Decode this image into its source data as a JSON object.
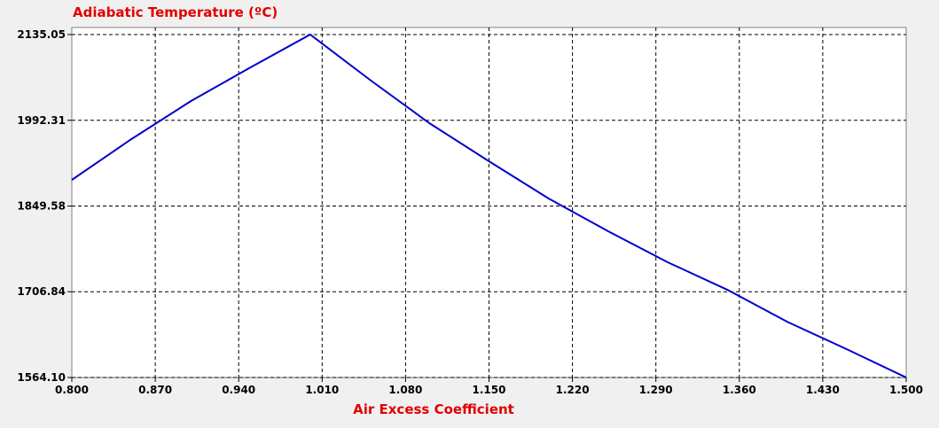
{
  "chart_data": {
    "type": "line",
    "title": "Adiabatic Temperature (ºC)",
    "xlabel": "Air Excess Coefficient",
    "ylabel": "",
    "xlim": [
      0.8,
      1.5
    ],
    "ylim": [
      1564.1,
      2135.05
    ],
    "x_ticks": [
      "0.800",
      "0.870",
      "0.940",
      "1.010",
      "1.080",
      "1.150",
      "1.220",
      "1.290",
      "1.360",
      "1.430",
      "1.500"
    ],
    "y_ticks": [
      "1564.10",
      "1706.84",
      "1849.58",
      "1992.31",
      "2135.05"
    ],
    "grid": true,
    "grid_style": "dashed",
    "line_color": "#0000cc",
    "title_color": "#e00000",
    "series": [
      {
        "x": [
          0.8,
          0.85,
          0.9,
          0.95,
          1.0,
          1.05,
          1.1,
          1.15,
          1.2,
          1.25,
          1.3,
          1.35,
          1.4,
          1.45,
          1.5
        ],
        "y": [
          1893.1,
          1961.0,
          2024.4,
          2080.5,
          2135.05,
          2059.8,
          1987.5,
          1924.1,
          1862.1,
          1807.6,
          1755.9,
          1710.1,
          1657.0,
          1611.3,
          1564.1
        ]
      }
    ]
  }
}
